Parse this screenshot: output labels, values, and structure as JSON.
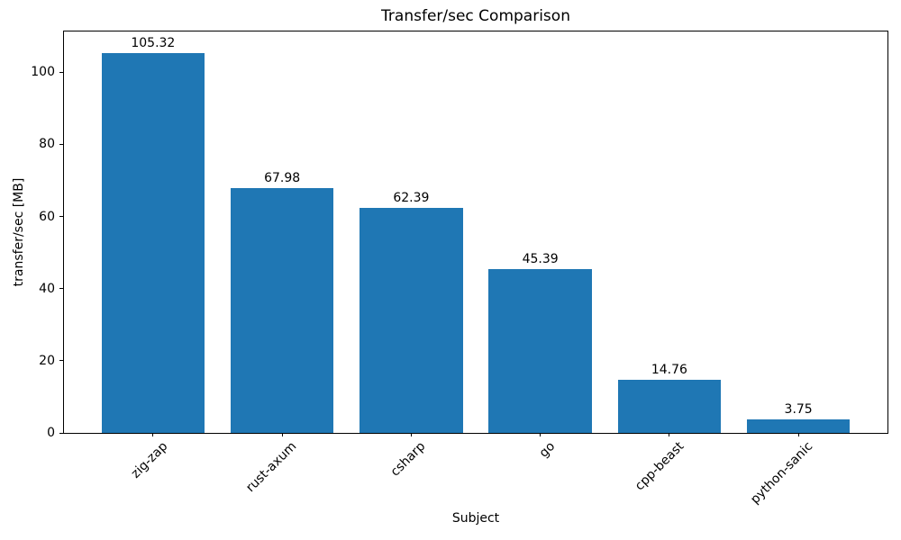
{
  "figure": {
    "background": "#ffffff",
    "text_color": "#000000"
  },
  "chart_data": {
    "type": "bar",
    "title": "Transfer/sec Comparison",
    "xlabel": "Subject",
    "ylabel": "transfer/sec [MB]",
    "categories": [
      "zig-zap",
      "rust-axum",
      "csharp",
      "go",
      "cpp-beast",
      "python-sanic"
    ],
    "values": [
      105.32,
      67.98,
      62.39,
      45.39,
      14.76,
      3.75
    ],
    "bar_labels": [
      "105.32",
      "67.98",
      "62.39",
      "45.39",
      "14.76",
      "3.75"
    ],
    "bar_color": "#1f77b4",
    "ylim": [
      0,
      111.3
    ],
    "yticks": [
      0,
      20,
      40,
      60,
      80,
      100
    ],
    "ytick_labels": [
      "0",
      "20",
      "40",
      "60",
      "80",
      "100"
    ],
    "xtick_rotation_deg": 45,
    "bar_relative_width": 0.8,
    "grid": false,
    "legend_position": "none"
  }
}
